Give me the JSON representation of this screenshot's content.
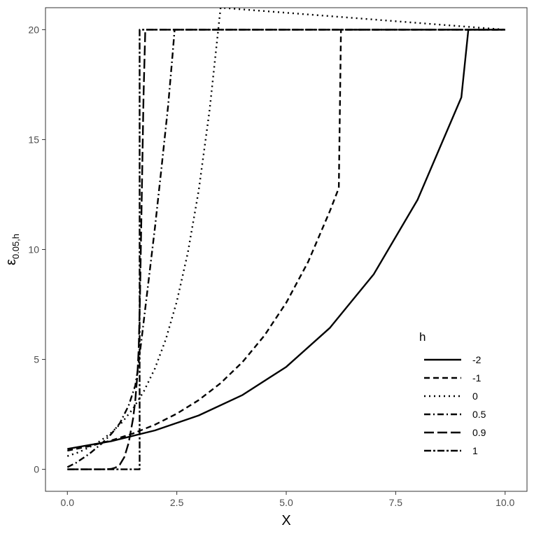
{
  "chart_data": {
    "type": "line",
    "xlabel": "X",
    "ylabel": "ε",
    "ylabel_subscript": "0.05,h",
    "xlim": [
      -0.5,
      10.5
    ],
    "ylim": [
      -1,
      21
    ],
    "x_ticks": [
      0,
      2.5,
      5,
      7.5,
      10
    ],
    "x_tick_labels": [
      "0.0",
      "2.5",
      "5.0",
      "7.5",
      "10.0"
    ],
    "y_ticks": [
      0,
      5,
      10,
      15,
      20
    ],
    "y_tick_labels": [
      "0",
      "5",
      "10",
      "15",
      "20"
    ],
    "grid": false,
    "legend": {
      "title": "h",
      "position": "bottom-right"
    },
    "line_color": "#000000",
    "panel_border_color": "#333333",
    "series": [
      {
        "name": "-2",
        "dash": "solid",
        "points": [
          [
            0,
            0.93
          ],
          [
            1,
            1.28
          ],
          [
            2,
            1.77
          ],
          [
            3,
            2.45
          ],
          [
            4,
            3.38
          ],
          [
            5,
            4.66
          ],
          [
            6,
            6.44
          ],
          [
            7,
            8.88
          ],
          [
            8,
            12.26
          ],
          [
            9,
            16.92
          ],
          [
            9.16,
            20
          ],
          [
            10,
            20
          ]
        ]
      },
      {
        "name": "-1",
        "dash": "dashed",
        "points": [
          [
            0,
            0.85
          ],
          [
            0.5,
            1.05
          ],
          [
            1,
            1.31
          ],
          [
            1.5,
            1.63
          ],
          [
            2,
            2.03
          ],
          [
            2.5,
            2.53
          ],
          [
            3,
            3.15
          ],
          [
            3.5,
            3.92
          ],
          [
            4,
            4.88
          ],
          [
            4.5,
            6.08
          ],
          [
            5,
            7.58
          ],
          [
            5.5,
            9.44
          ],
          [
            6,
            11.76
          ],
          [
            6.2,
            12.8
          ],
          [
            6.25,
            20
          ],
          [
            10,
            20
          ]
        ]
      },
      {
        "name": "0",
        "dash": "dotted",
        "points": [
          [
            0,
            0.6
          ],
          [
            0.25,
            0.77
          ],
          [
            0.5,
            1.0
          ],
          [
            0.75,
            1.29
          ],
          [
            1,
            1.66
          ],
          [
            1.25,
            2.14
          ],
          [
            1.5,
            2.76
          ],
          [
            1.75,
            3.56
          ],
          [
            2,
            4.59
          ],
          [
            2.25,
            5.92
          ],
          [
            2.5,
            7.63
          ],
          [
            2.75,
            9.84
          ],
          [
            3,
            12.68
          ],
          [
            3.25,
            16.35
          ],
          [
            3.5,
            21.0
          ],
          [
            10,
            20
          ]
        ]
      },
      {
        "name": "0.5",
        "dash": "dashdot",
        "points": [
          [
            0,
            0.1
          ],
          [
            0.2,
            0.3
          ],
          [
            0.5,
            0.7
          ],
          [
            0.8,
            1.2
          ],
          [
            1.0,
            1.6
          ],
          [
            1.2,
            2.1
          ],
          [
            1.4,
            2.9
          ],
          [
            1.55,
            3.8
          ],
          [
            1.6,
            4.4
          ],
          [
            1.7,
            6.0
          ],
          [
            1.85,
            8.5
          ],
          [
            2.0,
            11.0
          ],
          [
            2.15,
            13.7
          ],
          [
            2.3,
            16.5
          ],
          [
            2.4,
            18.8
          ],
          [
            2.45,
            20
          ],
          [
            10,
            20
          ]
        ]
      },
      {
        "name": "0.9",
        "dash": "longdash",
        "points": [
          [
            0,
            0
          ],
          [
            0.8,
            0
          ],
          [
            1.0,
            0.02
          ],
          [
            1.1,
            0.08
          ],
          [
            1.2,
            0.22
          ],
          [
            1.3,
            0.55
          ],
          [
            1.4,
            1.2
          ],
          [
            1.5,
            2.3
          ],
          [
            1.55,
            3.1
          ],
          [
            1.6,
            4.3
          ],
          [
            1.63,
            5.5
          ],
          [
            1.66,
            8.0
          ],
          [
            1.7,
            12.5
          ],
          [
            1.74,
            17.0
          ],
          [
            1.78,
            20
          ],
          [
            10,
            20
          ]
        ]
      },
      {
        "name": "1",
        "dash": "twodash",
        "points": [
          [
            0,
            0
          ],
          [
            1.65,
            0
          ],
          [
            1.65,
            20
          ],
          [
            10,
            20
          ]
        ]
      }
    ]
  }
}
